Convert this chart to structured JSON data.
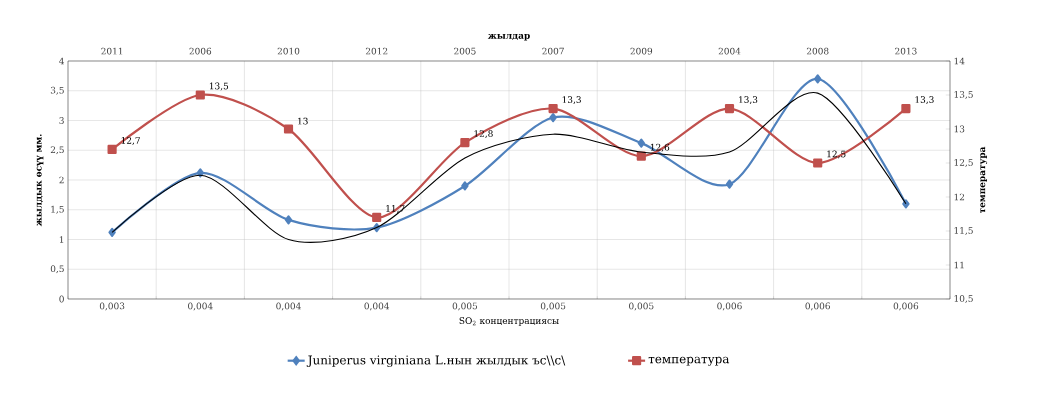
{
  "chart_data": {
    "type": "line",
    "categories": [
      "0,003",
      "0,004",
      "0,004",
      "0,004",
      "0,005",
      "0,005",
      "0,005",
      "0,006",
      "0,006",
      "0,006"
    ],
    "annotations": [
      "2011",
      "2006",
      "2010",
      "2012",
      "2005",
      "2007",
      "2009",
      "2004",
      "2008",
      "2013"
    ],
    "xlabel": "SO$_{2}$ концентрациясы",
    "x2label": "жылдар",
    "ylabel": "жылдык өсүү мм.",
    "y2label": "температура",
    "ylim": [
      0,
      4
    ],
    "yticks": [
      0,
      {
        "value": 0.5,
        "label": "0,5"
      },
      1,
      {
        "value": 1.5,
        "label": "1,5"
      },
      2,
      {
        "value": 2.5,
        "label": "2,5"
      },
      3,
      {
        "value": 3.5,
        "label": "3,5"
      },
      4
    ],
    "y2lim": [
      10.5,
      14
    ],
    "y2ticks": [
      {
        "value": 10.5,
        "label": "10,5"
      },
      11,
      {
        "value": 11.5,
        "label": "11,5"
      },
      12,
      {
        "value": 12.5,
        "label": "12,5"
      },
      13,
      {
        "value": 13.5,
        "label": "13,5"
      },
      14
    ],
    "grid": true,
    "legend": "bottom",
    "series": [
      {
        "name": "Juniperus virginiana L.нын жылдык ъс\\\\с\\",
        "color": "#4f81bd",
        "marker": "diamond",
        "values": [
          1.12,
          2.12,
          1.33,
          1.2,
          1.9,
          3.05,
          2.62,
          1.93,
          3.7,
          1.6
        ]
      },
      {
        "name": "температура",
        "color": "#c0504d",
        "marker": "square",
        "axis": "y2",
        "values": [
          12.7,
          13.5,
          13,
          11.7,
          12.8,
          13.3,
          12.6,
          13.3,
          12.5,
          13.3
        ],
        "value_labels": [
          "12,7",
          "13,5",
          "13",
          "11,7",
          "12,8",
          "13,3",
          "12,6",
          "13,3",
          "12,5",
          "13,3"
        ]
      },
      {
        "type": "line",
        "color": "#000000",
        "marker": "none",
        "values": [
          1.12,
          2.08,
          1.0,
          1.2,
          2.37,
          2.77,
          2.47,
          2.47,
          3.46,
          1.6
        ]
      }
    ]
  }
}
